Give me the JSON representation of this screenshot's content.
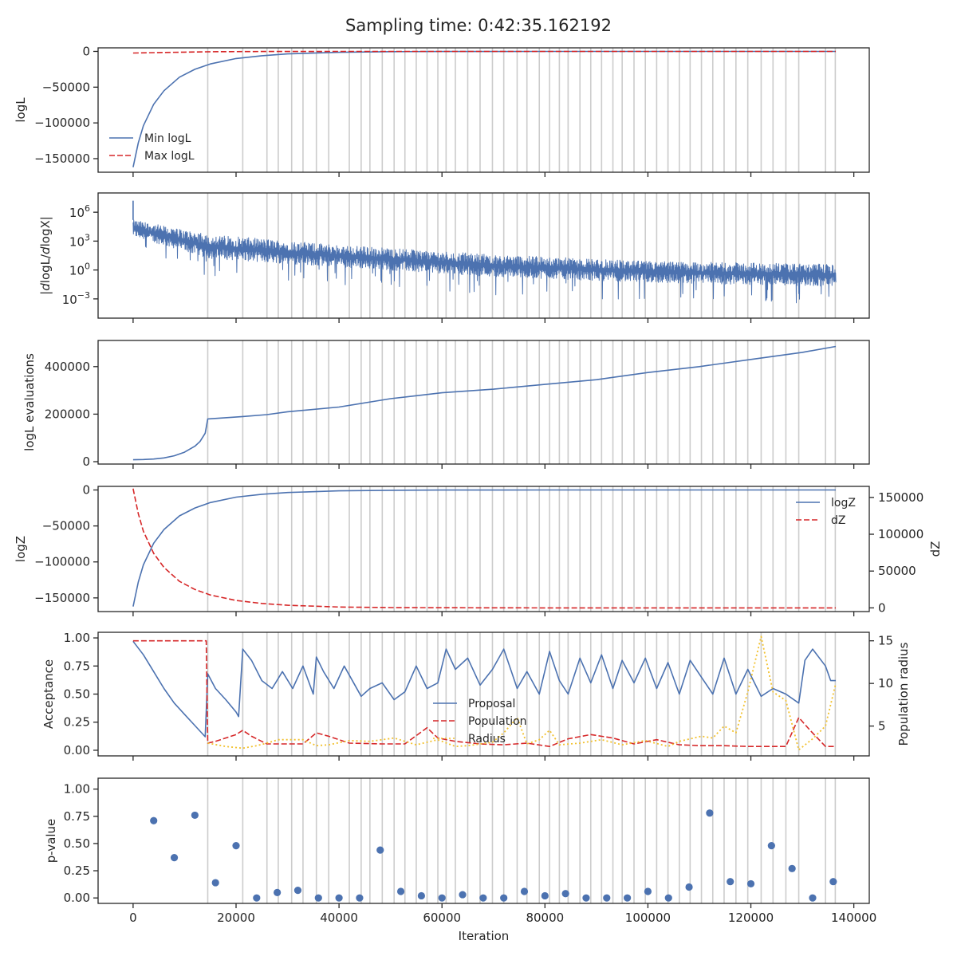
{
  "title": "Sampling time: 0:42:35.162192",
  "colors": {
    "blue": "#4c72b0",
    "red": "#d62728",
    "gold": "#f2c12e",
    "vline": "#cccccc",
    "text": "#262626"
  },
  "shared_x": {
    "label": "Iteration",
    "lim": [
      -6800,
      143000
    ],
    "ticks": [
      0,
      20000,
      40000,
      60000,
      80000,
      100000,
      120000,
      140000
    ],
    "tick_labels": [
      "0",
      "20000",
      "40000",
      "60000",
      "80000",
      "100000",
      "120000",
      "140000"
    ]
  },
  "vlines": [
    14500,
    21300,
    26000,
    28200,
    30800,
    33000,
    35600,
    38000,
    42000,
    44300,
    46000,
    48400,
    50700,
    52800,
    55000,
    57100,
    59200,
    60800,
    62600,
    65000,
    67400,
    69800,
    72000,
    74600,
    76500,
    78900,
    80900,
    82800,
    84500,
    86800,
    88900,
    91000,
    93200,
    95000,
    97300,
    99500,
    101700,
    103900,
    106100,
    108200,
    110400,
    112600,
    114800,
    117100,
    119400,
    122000,
    124300,
    126800,
    129300,
    134500,
    136400
  ],
  "chart_data": [
    {
      "type": "line",
      "panel": "logL",
      "ylabel": "logL",
      "ylim": [
        -169000,
        5000
      ],
      "yticks": [
        0,
        -50000,
        -100000,
        -150000
      ],
      "ytick_labels": [
        "0",
        "−50000",
        "−100000",
        "−150000"
      ],
      "legend": "lower-left",
      "series": [
        {
          "name": "Min logL",
          "style": "solid",
          "color": "#4c72b0",
          "x": [
            0,
            1000,
            2000,
            4000,
            6000,
            9000,
            12000,
            15000,
            20000,
            25000,
            30000,
            40000,
            50000,
            60000,
            80000,
            100000,
            136500
          ],
          "y": [
            -162000,
            -128000,
            -104000,
            -74000,
            -55000,
            -36000,
            -25000,
            -17500,
            -10000,
            -6000,
            -3500,
            -1200,
            -400,
            -150,
            -20,
            -5,
            0
          ]
        },
        {
          "name": "Max logL",
          "style": "dashed",
          "color": "#d62728",
          "x": [
            0,
            5000,
            10000,
            15000,
            25000,
            40000,
            136500
          ],
          "y": [
            -2200,
            -1600,
            -1000,
            -500,
            -150,
            -30,
            0
          ]
        }
      ]
    },
    {
      "type": "line",
      "panel": "dlogL",
      "ylabel": "|dlogL/dlogX|",
      "scale": "log",
      "ylim_log10": [
        -5,
        8
      ],
      "yticks_log10": [
        6,
        3,
        0,
        -3
      ],
      "ytick_labels": [
        [
          "10",
          "6"
        ],
        [
          "10",
          "3"
        ],
        [
          "10",
          "0"
        ],
        [
          "10",
          "−3"
        ]
      ],
      "series": [
        {
          "name": "",
          "style": "noisy-band",
          "color": "#4c72b0",
          "x": [
            0,
            14500,
            40000,
            70000,
            100000,
            136500
          ],
          "y_high_log10": [
            5.2,
            3.7,
            2.6,
            1.6,
            0.9,
            0.6
          ],
          "y_low_log10": [
            3.5,
            1.2,
            0.3,
            -0.7,
            -1.3,
            -1.7
          ],
          "spike_max_log10": 7.2,
          "dip_min_log10": -4.0
        }
      ]
    },
    {
      "type": "line",
      "panel": "evaluations",
      "ylabel": "logL evaluations",
      "ylim": [
        -10000,
        510000
      ],
      "yticks": [
        0,
        200000,
        400000
      ],
      "ytick_labels": [
        "0",
        "200000",
        "400000"
      ],
      "series": [
        {
          "name": "",
          "style": "step",
          "color": "#4c72b0",
          "x": [
            0,
            2000,
            4000,
            6000,
            8000,
            10000,
            12000,
            13000,
            14000,
            14500,
            21300,
            26000,
            30000,
            40000,
            50000,
            60000,
            70000,
            80000,
            90000,
            100000,
            110000,
            120000,
            130000,
            136500
          ],
          "y": [
            8000,
            9000,
            11000,
            16000,
            25000,
            40000,
            65000,
            85000,
            120000,
            180000,
            190000,
            198000,
            210000,
            230000,
            265000,
            290000,
            305000,
            325000,
            345000,
            375000,
            400000,
            430000,
            460000,
            485000
          ]
        }
      ]
    },
    {
      "type": "line",
      "panel": "logZ",
      "ylabel": "logZ",
      "ylim": [
        -169000,
        5000
      ],
      "yticks": [
        0,
        -50000,
        -100000,
        -150000
      ],
      "ytick_labels": [
        "0",
        "−50000",
        "−100000",
        "−150000"
      ],
      "y2label": "dZ",
      "y2lim": [
        -5000,
        165000
      ],
      "y2ticks": [
        0,
        50000,
        100000,
        150000
      ],
      "y2tick_labels": [
        "0",
        "50000",
        "100000",
        "150000"
      ],
      "legend": "upper-right",
      "series": [
        {
          "name": "logZ",
          "style": "solid",
          "color": "#4c72b0",
          "axis": "left",
          "x": [
            0,
            1000,
            2000,
            4000,
            6000,
            9000,
            12000,
            15000,
            20000,
            25000,
            30000,
            40000,
            50000,
            60000,
            80000,
            100000,
            136500
          ],
          "y": [
            -162000,
            -128000,
            -104000,
            -74000,
            -55000,
            -36000,
            -25000,
            -17500,
            -10000,
            -6000,
            -3500,
            -1200,
            -400,
            -150,
            -20,
            -5,
            0
          ]
        },
        {
          "name": "dZ",
          "style": "dashed",
          "color": "#d62728",
          "axis": "right",
          "x": [
            0,
            1000,
            2000,
            4000,
            6000,
            9000,
            12000,
            15000,
            20000,
            25000,
            30000,
            40000,
            50000,
            60000,
            80000,
            100000,
            136500
          ],
          "y": [
            162000,
            128000,
            104000,
            74000,
            55000,
            36000,
            25000,
            17500,
            10000,
            6000,
            3500,
            1200,
            400,
            150,
            20,
            5,
            0
          ]
        }
      ]
    },
    {
      "type": "line",
      "panel": "acceptance",
      "ylabel": "Acceptance",
      "ylim": [
        -0.05,
        1.05
      ],
      "yticks": [
        0,
        0.25,
        0.5,
        0.75,
        1.0
      ],
      "ytick_labels": [
        "0.00",
        "0.25",
        "0.50",
        "0.75",
        "1.00"
      ],
      "y2label": "Population radius",
      "y2lim": [
        1.5,
        16
      ],
      "y2ticks": [
        5,
        10,
        15
      ],
      "y2tick_labels": [
        "5",
        "10",
        "15"
      ],
      "legend": "center",
      "series": [
        {
          "name": "Proposal",
          "style": "solid",
          "color": "#4c72b0",
          "axis": "left",
          "x": [
            0,
            2000,
            4000,
            6000,
            8000,
            10000,
            12000,
            14000,
            14500,
            16000,
            18000,
            20000,
            20500,
            21300,
            23000,
            25000,
            27000,
            29000,
            31000,
            33000,
            35000,
            35600,
            37000,
            39000,
            41000,
            44300,
            46000,
            48400,
            50700,
            52800,
            55000,
            57100,
            59200,
            60800,
            62600,
            65000,
            67400,
            69800,
            72000,
            74600,
            76500,
            78900,
            80900,
            82800,
            84500,
            86800,
            88900,
            91000,
            93200,
            95000,
            97300,
            99500,
            101700,
            103900,
            106100,
            108200,
            110400,
            112600,
            114800,
            117100,
            119400,
            122000,
            124300,
            126800,
            129300,
            130500,
            132000,
            134500,
            135500,
            136500
          ],
          "y": [
            0.97,
            0.85,
            0.7,
            0.55,
            0.42,
            0.32,
            0.22,
            0.12,
            0.68,
            0.55,
            0.45,
            0.34,
            0.3,
            0.9,
            0.8,
            0.62,
            0.55,
            0.7,
            0.55,
            0.75,
            0.5,
            0.83,
            0.7,
            0.55,
            0.75,
            0.48,
            0.55,
            0.6,
            0.45,
            0.52,
            0.75,
            0.55,
            0.6,
            0.9,
            0.72,
            0.82,
            0.58,
            0.72,
            0.9,
            0.55,
            0.7,
            0.5,
            0.88,
            0.62,
            0.5,
            0.82,
            0.6,
            0.85,
            0.55,
            0.8,
            0.6,
            0.82,
            0.55,
            0.78,
            0.5,
            0.8,
            0.65,
            0.5,
            0.82,
            0.5,
            0.72,
            0.48,
            0.55,
            0.5,
            0.42,
            0.8,
            0.9,
            0.75,
            0.62,
            0.62
          ]
        },
        {
          "name": "Population",
          "style": "dashed",
          "color": "#d62728",
          "axis": "right",
          "x": [
            0,
            14200,
            14500,
            16000,
            20000,
            21300,
            23000,
            26000,
            30000,
            33000,
            35600,
            38000,
            42000,
            48400,
            52800,
            57100,
            59200,
            62600,
            67400,
            72000,
            76500,
            80900,
            84500,
            88900,
            93200,
            97300,
            101700,
            106100,
            110400,
            114800,
            119400,
            124300,
            126800,
            129300,
            131500,
            134500,
            136500
          ],
          "y": [
            15,
            15,
            3.0,
            3.2,
            4.0,
            4.5,
            3.8,
            2.9,
            2.9,
            2.9,
            4.2,
            3.8,
            3.0,
            2.9,
            2.9,
            4.8,
            3.6,
            3.2,
            2.9,
            2.8,
            3.0,
            2.6,
            3.5,
            4.0,
            3.6,
            2.9,
            3.4,
            2.8,
            2.7,
            2.7,
            2.6,
            2.6,
            2.6,
            6.0,
            4.5,
            2.6,
            2.6
          ]
        },
        {
          "name": "Radius",
          "style": "dotted",
          "color": "#f2c12e",
          "axis": "right",
          "x": [
            14500,
            18000,
            21300,
            24000,
            26000,
            28200,
            30800,
            33000,
            35600,
            38000,
            42000,
            46000,
            50700,
            55000,
            59200,
            62600,
            65000,
            69800,
            72000,
            74600,
            76500,
            78900,
            80900,
            82800,
            86800,
            91000,
            95000,
            99500,
            103900,
            106100,
            110400,
            112600,
            114800,
            117100,
            119400,
            122000,
            124300,
            126800,
            129300,
            132000,
            134500,
            136500
          ],
          "y": [
            3.0,
            2.6,
            2.4,
            2.7,
            3.0,
            3.4,
            3.4,
            3.4,
            2.7,
            2.8,
            3.3,
            3.2,
            3.6,
            2.8,
            3.4,
            2.6,
            2.7,
            3.1,
            4.2,
            6.0,
            2.9,
            3.4,
            4.5,
            2.8,
            3.0,
            3.4,
            2.8,
            3.3,
            2.6,
            3.2,
            3.8,
            3.6,
            5.0,
            4.2,
            9.0,
            15.5,
            9.0,
            8.0,
            2.2,
            3.5,
            5.0,
            10.0
          ]
        }
      ]
    },
    {
      "type": "scatter",
      "panel": "pvalue",
      "ylabel": "p-value",
      "ylim": [
        -0.05,
        1.1
      ],
      "yticks": [
        0,
        0.25,
        0.5,
        0.75,
        1.0
      ],
      "ytick_labels": [
        "0.00",
        "0.25",
        "0.50",
        "0.75",
        "1.00"
      ],
      "series": [
        {
          "name": "",
          "color": "#4c72b0",
          "x": [
            4000,
            8000,
            12000,
            16000,
            20000,
            24000,
            28000,
            32000,
            36000,
            40000,
            44000,
            48000,
            52000,
            56000,
            60000,
            64000,
            68000,
            72000,
            76000,
            80000,
            84000,
            88000,
            92000,
            96000,
            100000,
            104000,
            108000,
            112000,
            116000,
            120000,
            124000,
            128000,
            132000,
            136000
          ],
          "y": [
            0.71,
            0.37,
            0.76,
            0.14,
            0.48,
            0.0,
            0.05,
            0.07,
            0.0,
            0.0,
            0.0,
            0.44,
            0.06,
            0.02,
            0.0,
            0.03,
            0.0,
            0.0,
            0.06,
            0.02,
            0.04,
            0.0,
            0.0,
            0.0,
            0.06,
            0.0,
            0.1,
            0.78,
            0.15,
            0.13,
            0.48,
            0.27,
            0.0,
            0.15
          ]
        }
      ]
    }
  ]
}
